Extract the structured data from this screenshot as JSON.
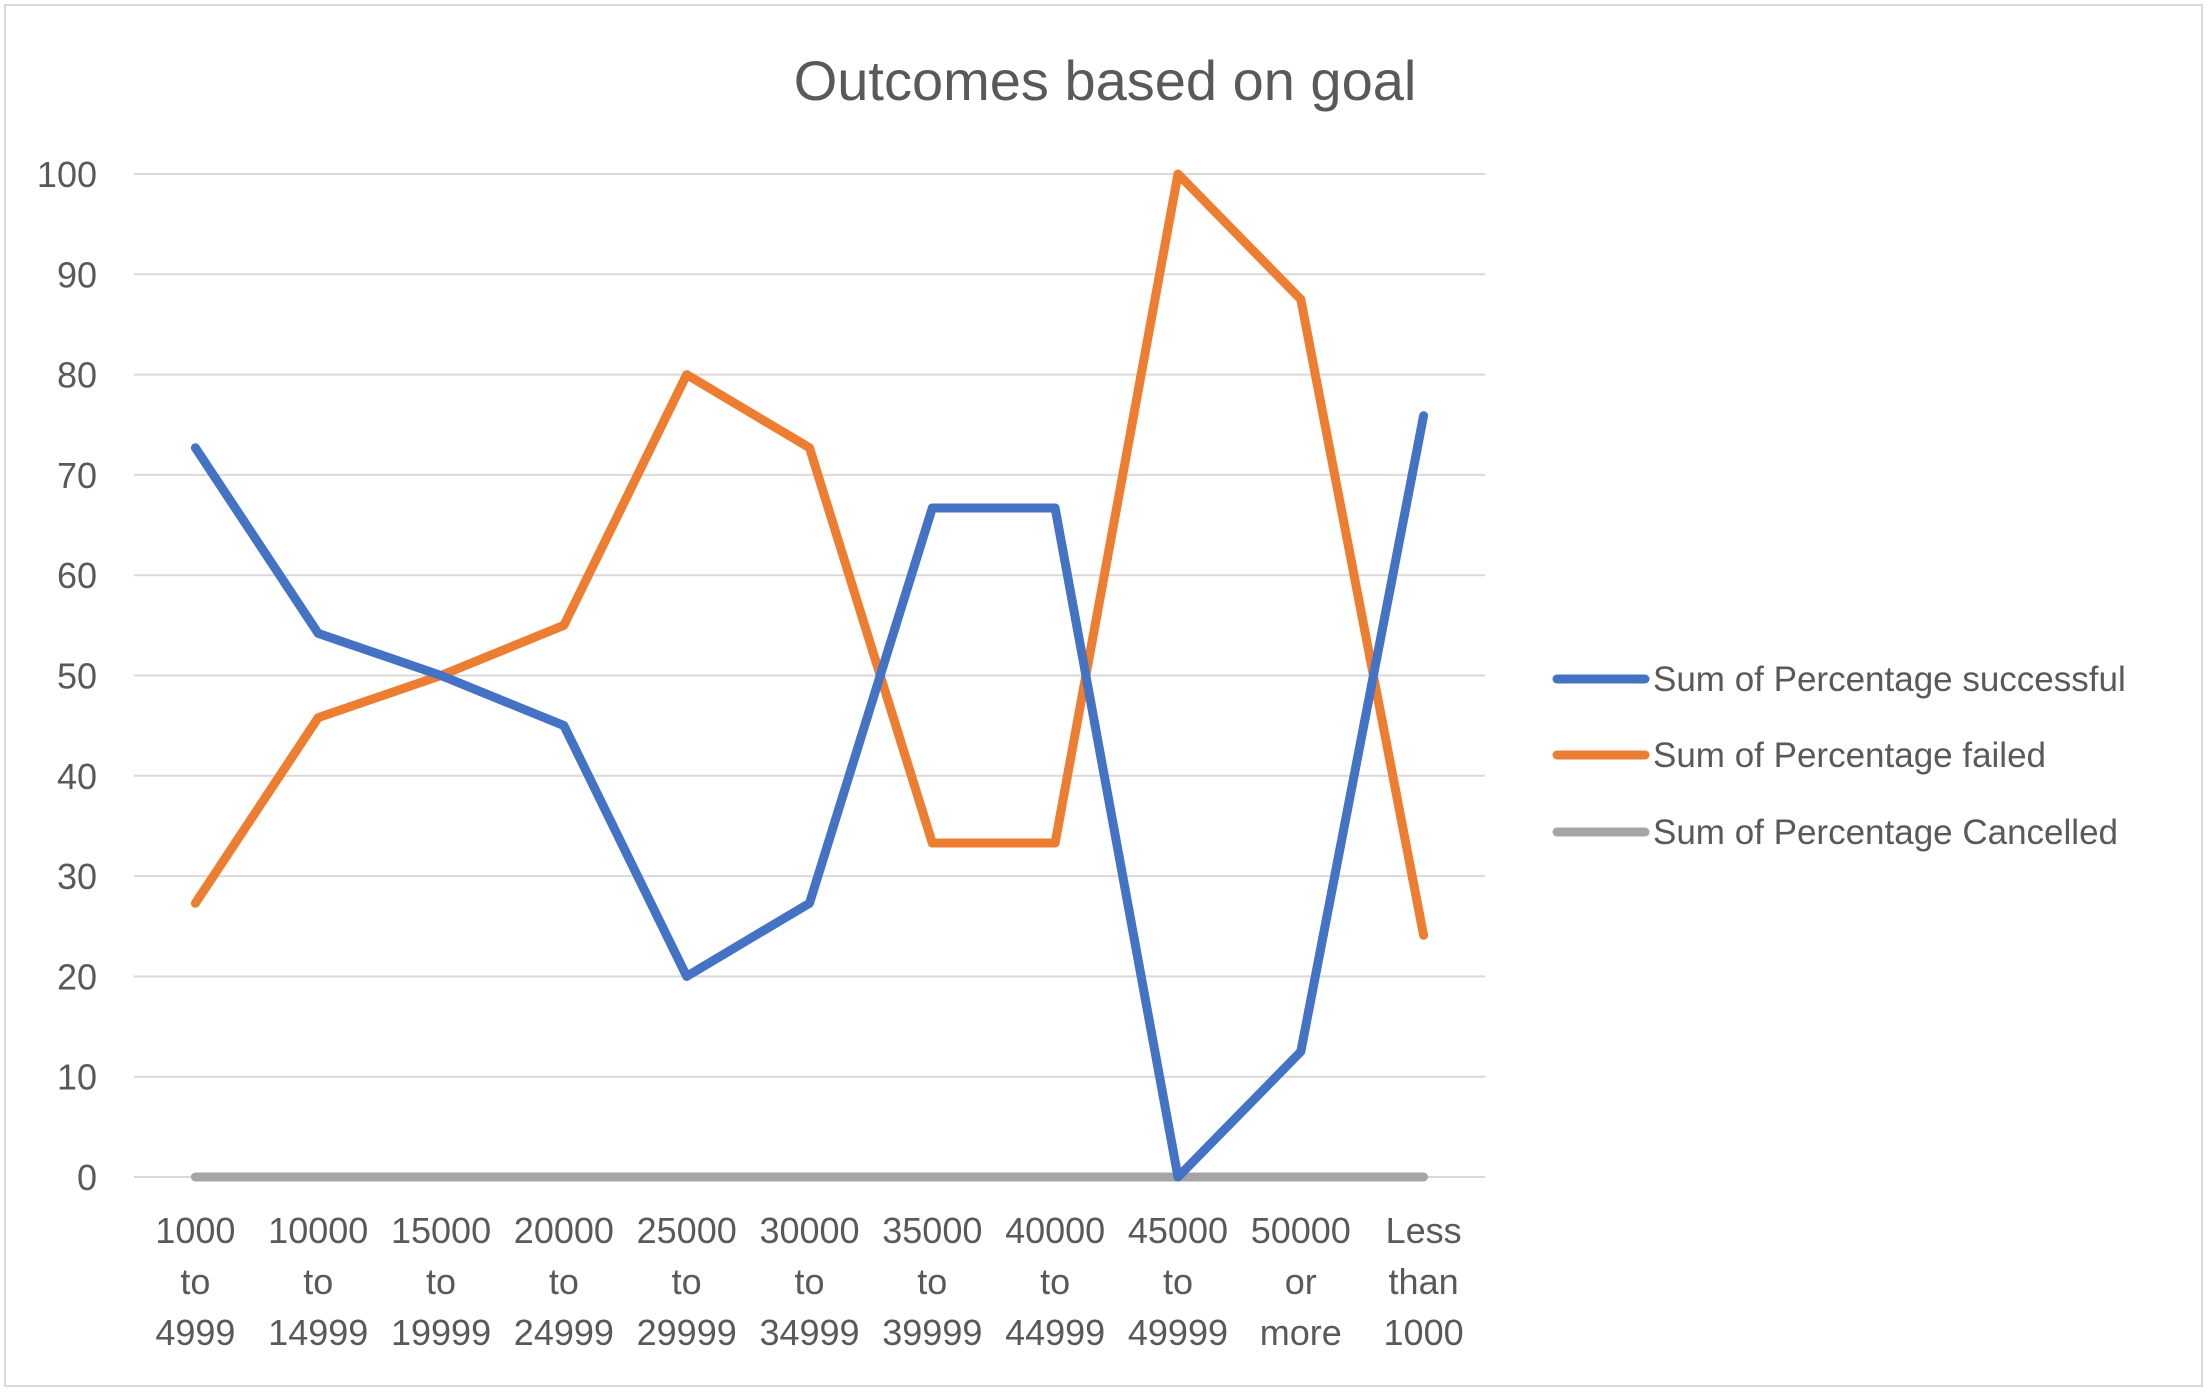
{
  "chart_data": {
    "type": "line",
    "title": "Outcomes based on goal",
    "xlabel": "",
    "ylabel": "",
    "ylim": [
      0,
      100
    ],
    "yticks": [
      "0",
      "10",
      "20",
      "30",
      "40",
      "50",
      "60",
      "70",
      "80",
      "90",
      "100"
    ],
    "grid": true,
    "legend_position": "right",
    "categories": [
      [
        "1000",
        "to",
        "4999"
      ],
      [
        "10000",
        "to",
        "14999"
      ],
      [
        "15000",
        "to",
        "19999"
      ],
      [
        "20000",
        "to",
        "24999"
      ],
      [
        "25000",
        "to",
        "29999"
      ],
      [
        "30000",
        "to",
        "34999"
      ],
      [
        "35000",
        "to",
        "39999"
      ],
      [
        "40000",
        "to",
        "44999"
      ],
      [
        "45000",
        "to",
        "49999"
      ],
      [
        "50000",
        "or",
        "more"
      ],
      [
        "Less",
        "than",
        "1000"
      ]
    ],
    "series": [
      {
        "name": "Sum of Percentage successful",
        "color": "#4472c4",
        "values": [
          72.7,
          54.2,
          50.0,
          45.0,
          20.0,
          27.3,
          66.7,
          66.7,
          0.0,
          12.5,
          75.9
        ]
      },
      {
        "name": "Sum of Percentage failed",
        "color": "#ed7d31",
        "values": [
          27.3,
          45.8,
          50.0,
          55.0,
          80.0,
          72.7,
          33.3,
          33.3,
          100.0,
          87.5,
          24.1
        ]
      },
      {
        "name": "Sum of Percentage Cancelled",
        "color": "#a5a5a5",
        "values": [
          0,
          0,
          0,
          0,
          0,
          0,
          0,
          0,
          0,
          0,
          0
        ]
      }
    ]
  }
}
